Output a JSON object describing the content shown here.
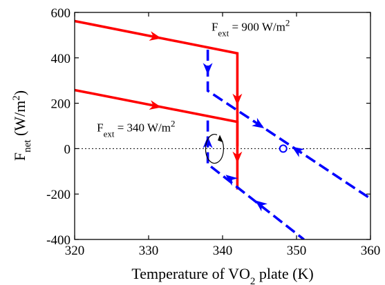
{
  "chart_data": {
    "type": "line",
    "xlabel": "Temperature of VO",
    "xlabel_sub": "2",
    "xlabel_tail": " plate (K)",
    "ylabel": "F",
    "ylabel_sub": "net",
    "ylabel_tail": " (W/m",
    "ylabel_sup": "2",
    "ylabel_close": ")",
    "xlim": [
      320,
      360
    ],
    "ylim": [
      -400,
      600
    ],
    "x_ticks": [
      320,
      330,
      340,
      350,
      360
    ],
    "y_ticks": [
      -400,
      -200,
      0,
      200,
      400,
      600
    ],
    "x_tick_labels": [
      "320",
      "330",
      "340",
      "350",
      "360"
    ],
    "y_tick_labels": [
      "-400",
      "-200",
      "0",
      "200",
      "400",
      "600"
    ],
    "grid": false,
    "zero_line": {
      "y": 0,
      "style": "dotted",
      "color": "#000000"
    },
    "series": [
      {
        "style": "solid",
        "color": "#ff0000",
        "points": [
          [
            320,
            562
          ],
          [
            342,
            420
          ],
          [
            342,
            10
          ]
        ],
        "arrows": [
          [
            331,
            491,
            1
          ],
          [
            342,
            215,
            1
          ]
        ]
      },
      {
        "style": "dashed",
        "color": "#0000ff",
        "points": [
          [
            338,
            436
          ],
          [
            338,
            255
          ],
          [
            365,
            -328
          ]
        ],
        "arrows": [
          [
            338,
            350,
            1
          ],
          [
            345,
            103,
            1
          ],
          [
            350,
            -5,
            -1
          ]
        ]
      },
      {
        "style": "solid",
        "color": "#ff0000",
        "points": [
          [
            320,
            258
          ],
          [
            342,
            118
          ],
          [
            342,
            -180
          ]
        ],
        "arrows": [
          [
            331,
            187,
            1
          ],
          [
            342,
            -40,
            1
          ]
        ]
      },
      {
        "style": "dashed",
        "color": "#0000ff",
        "points": [
          [
            338,
            124
          ],
          [
            338,
            -68
          ],
          [
            351,
            -400
          ]
        ],
        "arrows": [
          [
            338,
            30,
            -1
          ],
          [
            341,
            -130,
            -1
          ],
          [
            345,
            -243,
            -1
          ]
        ]
      }
    ],
    "markers": [
      {
        "x": 348.2,
        "y": 0,
        "shape": "circle",
        "color": "#0000ff",
        "fill": "#ffffff"
      }
    ],
    "loop_annotation": {
      "x": 340,
      "y": 0,
      "direction": "clockwise"
    },
    "annotations": [
      {
        "x": 338.5,
        "y": 520,
        "base": "F",
        "sub": "ext",
        "tail": " = 900 W/m",
        "sup": "2"
      },
      {
        "x": 323,
        "y": 75,
        "base": "F",
        "sub": "ext",
        "tail": " = 340 W/m",
        "sup": "2"
      }
    ]
  }
}
